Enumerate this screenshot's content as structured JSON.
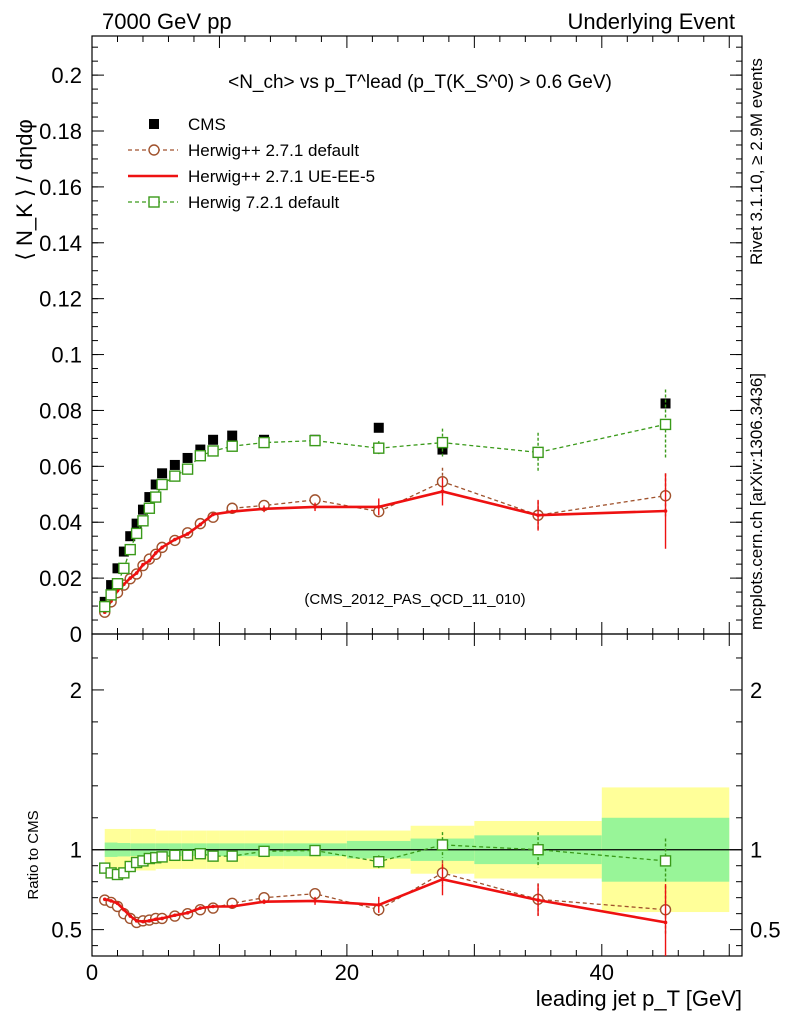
{
  "header": {
    "left": "7000 GeV pp",
    "right": "Underlying Event"
  },
  "side": {
    "rivet": "Rivet 3.1.10, ≥ 2.9M events",
    "mcplots": "mcplots.cern.ch [arXiv:1306.3436]"
  },
  "analysis_ref": "(CMS_2012_PAS_QCD_11_010)",
  "colors": {
    "cms": "#000000",
    "herwig271_default": "#a0522d",
    "herwig271_ueee5": "#ee1111",
    "herwig721_default": "#3a9a1a",
    "band_inner": "#98f598",
    "band_outer": "#ffff99"
  },
  "chart_data": [
    {
      "type": "scatter",
      "panel": "main",
      "title": "<N_ch> vs p_T^lead (p_T(K_S^0) > 0.6 GeV)",
      "ylabel": "⟨ N_K ⟩ / dηdφ",
      "xlim": [
        0,
        51
      ],
      "ylim": [
        0,
        0.214
      ],
      "yticks": [
        0,
        0.02,
        0.04,
        0.06,
        0.08,
        0.1,
        0.12,
        0.14,
        0.16,
        0.18,
        0.2
      ],
      "ytick_labels": [
        "0",
        "0.02",
        "0.04",
        "0.06",
        "0.08",
        "0.1",
        "0.12",
        "0.14",
        "0.16",
        "0.18",
        "0.2"
      ],
      "legend_position": "top-left",
      "series": [
        {
          "name": "CMS",
          "style": "square-filled",
          "x": [
            1.0,
            1.5,
            2.0,
            2.5,
            3.0,
            3.5,
            4.0,
            4.5,
            5.0,
            5.5,
            6.5,
            7.5,
            8.5,
            9.5,
            11.0,
            13.5,
            17.5,
            22.5,
            27.5,
            35.0,
            45.0
          ],
          "y": [
            0.0115,
            0.0175,
            0.0235,
            0.0295,
            0.035,
            0.0395,
            0.0445,
            0.049,
            0.0535,
            0.0575,
            0.0605,
            0.063,
            0.066,
            0.0695,
            0.071,
            0.0695,
            0.0695,
            0.0738,
            0.066,
            0.065,
            0.0825
          ]
        },
        {
          "name": "Herwig++ 2.7.1 default",
          "style": "circle-open-dashed",
          "x": [
            1.0,
            1.5,
            2.0,
            2.5,
            3.0,
            3.5,
            4.0,
            4.5,
            5.0,
            5.5,
            6.5,
            7.5,
            8.5,
            9.5,
            11.0,
            13.5,
            17.5,
            22.5,
            27.5,
            35.0,
            45.0
          ],
          "y": [
            0.0078,
            0.0115,
            0.0148,
            0.0175,
            0.0198,
            0.0215,
            0.0245,
            0.0268,
            0.0285,
            0.031,
            0.0335,
            0.0362,
            0.0395,
            0.0418,
            0.045,
            0.046,
            0.048,
            0.0438,
            0.0545,
            0.0425,
            0.0495
          ],
          "yerr": [
            0,
            0,
            0,
            0,
            0,
            0,
            0,
            0,
            0,
            0,
            0,
            0,
            0,
            0,
            0,
            0,
            0,
            0.002,
            0.005,
            0.005,
            0.008
          ]
        },
        {
          "name": "Herwig++ 2.7.1 UE-EE-5",
          "style": "line-solid",
          "x": [
            1.0,
            1.5,
            2.0,
            2.5,
            3.0,
            3.5,
            4.0,
            4.5,
            5.0,
            5.5,
            6.5,
            7.5,
            8.5,
            9.5,
            11.0,
            13.5,
            17.5,
            22.5,
            27.5,
            35.0,
            45.0
          ],
          "y": [
            0.0078,
            0.0118,
            0.0155,
            0.0178,
            0.02,
            0.0218,
            0.0248,
            0.0262,
            0.029,
            0.031,
            0.0338,
            0.0358,
            0.0392,
            0.0428,
            0.0438,
            0.0448,
            0.0455,
            0.0455,
            0.051,
            0.0425,
            0.044
          ],
          "yerr": [
            0,
            0,
            0,
            0,
            0,
            0,
            0,
            0,
            0,
            0,
            0,
            0,
            0,
            0,
            0,
            0.0012,
            0.0015,
            0.003,
            0.005,
            0.0055,
            0.0135
          ]
        },
        {
          "name": "Herwig 7.2.1 default",
          "style": "square-open-dashed",
          "x": [
            1.0,
            1.5,
            2.0,
            2.5,
            3.0,
            3.5,
            4.0,
            4.5,
            5.0,
            5.5,
            6.5,
            7.5,
            8.5,
            9.5,
            11.0,
            13.5,
            17.5,
            22.5,
            27.5,
            35.0,
            45.0
          ],
          "y": [
            0.0098,
            0.014,
            0.018,
            0.0235,
            0.0302,
            0.036,
            0.0405,
            0.045,
            0.049,
            0.0535,
            0.0565,
            0.059,
            0.0638,
            0.0655,
            0.0672,
            0.0685,
            0.0692,
            0.0665,
            0.0685,
            0.065,
            0.075
          ],
          "yerr": [
            0,
            0,
            0,
            0,
            0,
            0,
            0,
            0,
            0,
            0,
            0,
            0,
            0,
            0,
            0,
            0.001,
            0.0012,
            0.0025,
            0.005,
            0.007,
            0.0125
          ]
        }
      ]
    },
    {
      "type": "scatter",
      "panel": "ratio",
      "ylabel": "Ratio to CMS",
      "xlabel": "leading jet p_T [GeV]",
      "xlim": [
        0,
        51
      ],
      "ylim": [
        0.335,
        2.35
      ],
      "xticks": [
        0,
        20,
        40
      ],
      "xtick_labels": [
        "0",
        "20",
        "40"
      ],
      "yticks": [
        0.5,
        1,
        2
      ],
      "ytick_labels": [
        "0.5",
        "1",
        "2"
      ],
      "bands": {
        "edges": [
          1,
          2,
          3,
          4,
          5,
          6,
          7,
          8,
          9,
          10,
          12,
          15,
          20,
          25,
          30,
          40,
          50
        ],
        "inner": [
          0.045,
          0.042,
          0.04,
          0.04,
          0.04,
          0.04,
          0.04,
          0.04,
          0.04,
          0.04,
          0.04,
          0.04,
          0.055,
          0.07,
          0.09,
          0.2
        ],
        "outer": [
          0.13,
          0.13,
          0.13,
          0.13,
          0.12,
          0.12,
          0.12,
          0.12,
          0.12,
          0.12,
          0.12,
          0.12,
          0.12,
          0.15,
          0.18,
          0.39
        ]
      },
      "series": [
        {
          "name": "Herwig++ 2.7.1 default",
          "style": "circle-open-dashed",
          "x": [
            1.0,
            1.5,
            2.0,
            2.5,
            3.0,
            3.5,
            4.0,
            4.5,
            5.0,
            5.5,
            6.5,
            7.5,
            8.5,
            9.5,
            11.0,
            13.5,
            17.5,
            22.5,
            27.5,
            35.0,
            45.0
          ],
          "y": [
            0.685,
            0.67,
            0.645,
            0.6,
            0.57,
            0.545,
            0.555,
            0.56,
            0.57,
            0.57,
            0.585,
            0.6,
            0.625,
            0.635,
            0.665,
            0.7,
            0.725,
            0.625,
            0.855,
            0.69,
            0.625
          ],
          "yerr": [
            0,
            0,
            0,
            0,
            0,
            0,
            0,
            0,
            0,
            0,
            0,
            0,
            0,
            0,
            0,
            0,
            0,
            0.04,
            0.08,
            0.1,
            0.15
          ]
        },
        {
          "name": "Herwig++ 2.7.1 UE-EE-5",
          "style": "line-solid",
          "x": [
            1.0,
            1.5,
            2.0,
            2.5,
            3.0,
            3.5,
            4.0,
            4.5,
            5.0,
            5.5,
            6.5,
            7.5,
            8.5,
            9.5,
            11.0,
            13.5,
            17.5,
            22.5,
            27.5,
            35.0,
            45.0
          ],
          "y": [
            0.69,
            0.68,
            0.665,
            0.625,
            0.585,
            0.555,
            0.55,
            0.555,
            0.565,
            0.57,
            0.59,
            0.605,
            0.635,
            0.645,
            0.645,
            0.675,
            0.68,
            0.655,
            0.815,
            0.685,
            0.545
          ],
          "yerr": [
            0,
            0,
            0,
            0,
            0,
            0,
            0,
            0,
            0,
            0,
            0,
            0,
            0,
            0,
            0,
            0.015,
            0.025,
            0.05,
            0.1,
            0.1,
            0.24
          ]
        },
        {
          "name": "Herwig 7.2.1 default",
          "style": "square-open-dashed",
          "x": [
            1.0,
            1.5,
            2.0,
            2.5,
            3.0,
            3.5,
            4.0,
            4.5,
            5.0,
            5.5,
            6.5,
            7.5,
            8.5,
            9.5,
            11.0,
            13.5,
            17.5,
            22.5,
            27.5,
            35.0,
            45.0
          ],
          "y": [
            0.885,
            0.855,
            0.845,
            0.855,
            0.895,
            0.92,
            0.93,
            0.945,
            0.95,
            0.955,
            0.965,
            0.965,
            0.975,
            0.96,
            0.96,
            0.99,
            0.995,
            0.925,
            1.03,
            1.0,
            0.93
          ],
          "yerr": [
            0,
            0,
            0,
            0,
            0,
            0,
            0,
            0,
            0,
            0,
            0,
            0,
            0,
            0,
            0,
            0.015,
            0.02,
            0.04,
            0.08,
            0.11,
            0.14
          ]
        }
      ]
    }
  ]
}
